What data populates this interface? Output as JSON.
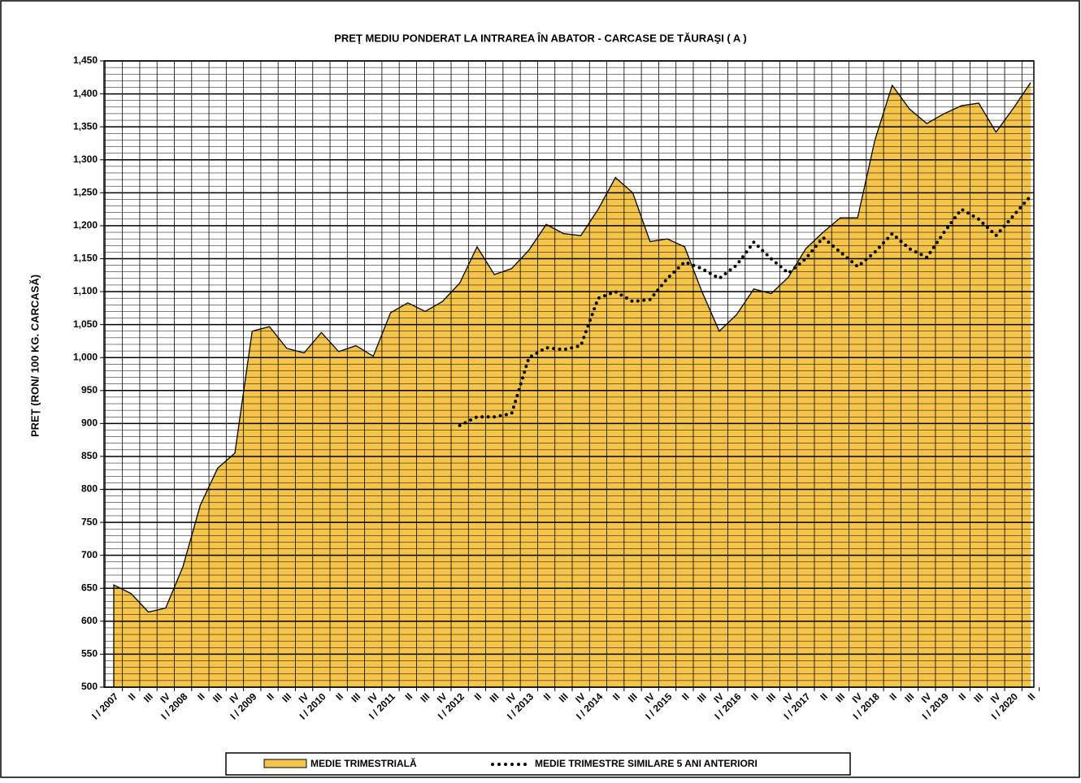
{
  "chart_data": {
    "type": "area",
    "title": "PREŢ MEDIU PONDERAT LA INTRAREA ÎN ABATOR - CARCASE DE TĂURAŞI ( A )",
    "y_label": "PREȚ (RON/ 100 KG. CARCASĂ)",
    "categories": [
      "I / 2007",
      "II",
      "III",
      "IV",
      "I / 2008",
      "II",
      "III",
      "IV",
      "I / 2009",
      "II",
      "III",
      "IV",
      "I / 2010",
      "II",
      "III",
      "IV",
      "I / 2011",
      "II",
      "III",
      "IV",
      "I / 2012",
      "II",
      "III",
      "IV",
      "I / 2013",
      "II",
      "III",
      "IV",
      "I / 2014",
      "II",
      "III",
      "IV",
      "I / 2015",
      "II",
      "III",
      "IV",
      "I / 2016",
      "II",
      "III",
      "IV",
      "I / 2017",
      "II",
      "III",
      "IV",
      "I / 2018",
      "II",
      "III",
      "IV",
      "I / 2019",
      "II",
      "III",
      "IV",
      "I / 2020",
      "II"
    ],
    "series": [
      {
        "name": "MEDIE TRIMESTRIALĂ",
        "color": "#f5c44b",
        "style": "area",
        "values": [
          655,
          642,
          614,
          620,
          683,
          776,
          832,
          855,
          1040,
          1047,
          1014,
          1007,
          1038,
          1009,
          1018,
          1002,
          1068,
          1083,
          1070,
          1085,
          1113,
          1168,
          1126,
          1135,
          1163,
          1202,
          1188,
          1185,
          1225,
          1273,
          1250,
          1176,
          1180,
          1168,
          1100,
          1040,
          1065,
          1104,
          1097,
          1122,
          1165,
          1190,
          1212,
          1212,
          1330,
          1413,
          1377,
          1355,
          1370,
          1382,
          1386,
          1342,
          1378,
          1417
        ]
      },
      {
        "name": "MEDIE TRIMESTRE SIMILARE 5 ANI ANTERIORI",
        "color": "#000000",
        "style": "dotted",
        "values": [
          null,
          null,
          null,
          null,
          null,
          null,
          null,
          null,
          null,
          null,
          null,
          null,
          null,
          null,
          null,
          null,
          null,
          null,
          null,
          null,
          897,
          910,
          910,
          915,
          1000,
          1015,
          1012,
          1018,
          1090,
          1100,
          1085,
          1088,
          1120,
          1145,
          1135,
          1120,
          1140,
          1175,
          1150,
          1128,
          1150,
          1182,
          1160,
          1138,
          1160,
          1188,
          1165,
          1152,
          1190,
          1225,
          1210,
          1185,
          1215,
          1245
        ]
      }
    ],
    "ylim": [
      500,
      1450
    ],
    "yticks": [
      500,
      550,
      600,
      650,
      700,
      750,
      800,
      850,
      900,
      950,
      {
        "value": 1000,
        "label": "1,000"
      },
      {
        "value": 1050,
        "label": "1,050"
      },
      {
        "value": 1100,
        "label": "1,100"
      },
      {
        "value": 1150,
        "label": "1,150"
      },
      {
        "value": 1200,
        "label": "1,200"
      },
      {
        "value": 1250,
        "label": "1,250"
      },
      {
        "value": 1300,
        "label": "1,300"
      },
      {
        "value": 1350,
        "label": "1,350"
      },
      {
        "value": 1400,
        "label": "1,400"
      },
      {
        "value": 1450,
        "label": "1,450"
      }
    ],
    "grid": true,
    "legend": "bottom"
  }
}
